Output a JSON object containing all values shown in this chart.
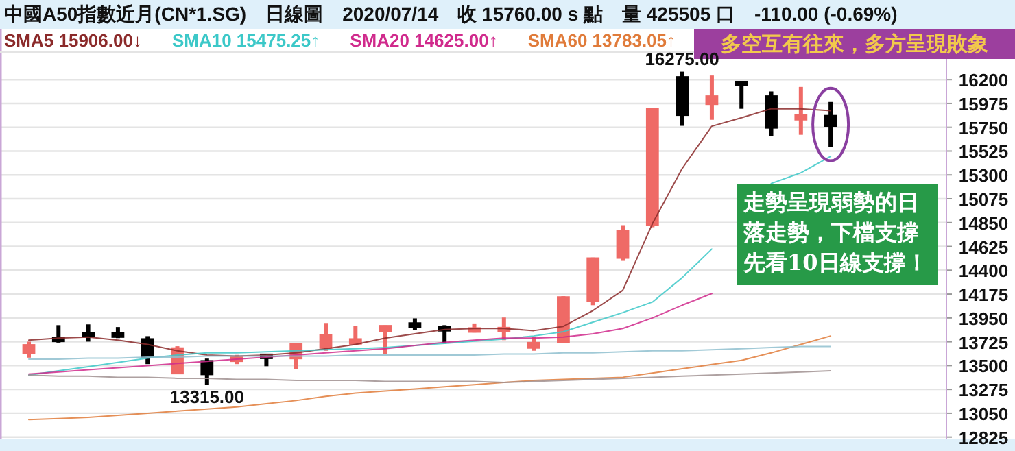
{
  "chart_data": {
    "type": "candlestick",
    "title": "中國A50指數近月(CN*1.SG)　日線圖　2020/07/14　收 15760.00 s 點　量 425505 口　-110.00 (-0.69%)",
    "categories": [
      null,
      null,
      null,
      null,
      null,
      null,
      null,
      null,
      null,
      null,
      null,
      null,
      null,
      null,
      null,
      null,
      null,
      null,
      null,
      null,
      null,
      null,
      null,
      null,
      null,
      null,
      null,
      null
    ],
    "ohlc": [
      [
        13618,
        13726,
        13575,
        13696
      ],
      [
        13750,
        13882,
        13717,
        13745
      ],
      [
        13795,
        13889,
        13726,
        13790
      ],
      [
        13812,
        13864,
        13760,
        13769
      ],
      [
        13752,
        13778,
        13514,
        13575
      ],
      [
        13424,
        13683,
        13424,
        13666
      ],
      [
        13545,
        13566,
        13315,
        13416
      ],
      [
        13545,
        13601,
        13514,
        13575
      ],
      [
        13590,
        13595,
        13494,
        13585
      ],
      [
        13566,
        13710,
        13468,
        13705
      ],
      [
        13666,
        13902,
        13640,
        13791
      ],
      [
        13705,
        13876,
        13696,
        13752
      ],
      [
        13821,
        13880,
        13610,
        13877
      ],
      [
        13885,
        13946,
        13834,
        13880
      ],
      [
        13850,
        13882,
        13708,
        13845
      ],
      [
        13825,
        13898,
        13812,
        13847
      ],
      [
        13830,
        13954,
        13740,
        13850
      ],
      [
        13666,
        13769,
        13640,
        13717
      ],
      [
        13717,
        14155,
        13710,
        14148
      ],
      [
        14105,
        14520,
        14070,
        14515
      ],
      [
        14515,
        14826,
        14489,
        14774
      ],
      [
        14826,
        15930,
        14807,
        15925
      ],
      [
        16226,
        16275,
        15764,
        15864
      ],
      [
        15967,
        16239,
        15821,
        16045
      ],
      [
        16165,
        16165,
        15925,
        16160
      ],
      [
        16045,
        16088,
        15666,
        15744
      ],
      [
        15821,
        16131,
        15679,
        15870
      ],
      [
        15860,
        15989,
        15563,
        15760
      ]
    ],
    "colors": [
      "#ef6a66",
      "#000000",
      "#000000",
      "#000000",
      "#000000",
      "#ef6a66",
      "#000000",
      "#ef6a66",
      "#000000",
      "#ef6a66",
      "#ef6a66",
      "#ef6a66",
      "#ef6a66",
      "#000000",
      "#000000",
      "#ef6a66",
      "#ef6a66",
      "#ef6a66",
      "#ef6a66",
      "#ef6a66",
      "#ef6a66",
      "#ef6a66",
      "#000000",
      "#ef6a66",
      "#000000",
      "#000000",
      "#ef6a66",
      "#000000"
    ],
    "series": [
      {
        "name": "SMA5 15906.00↓",
        "type": "line",
        "color": "#8b2a2a",
        "values": [
          13740,
          13760,
          13770,
          13740,
          13700,
          13640,
          13600,
          13590,
          13600,
          13620,
          13660,
          13700,
          13760,
          13800,
          13840,
          13850,
          13850,
          13830,
          13870,
          14020,
          14210,
          14840,
          15360,
          15760,
          15840,
          15925,
          15925,
          15906
        ]
      },
      {
        "name": "SMA10 15475.25↑",
        "type": "line",
        "color": "#3cc8c8",
        "values": [
          13410,
          13450,
          13490,
          13530,
          13570,
          13600,
          13620,
          13620,
          13630,
          13640,
          13650,
          13660,
          13670,
          13690,
          13710,
          13730,
          13750,
          13780,
          13820,
          13910,
          14000,
          14100,
          14330,
          14600,
          null,
          15220,
          15320,
          15475
        ]
      },
      {
        "name": "SMA20 14625.00↑",
        "type": "line",
        "color": "#d02a8c",
        "values": [
          13420,
          13440,
          13460,
          13480,
          13500,
          13520,
          13540,
          13560,
          13580,
          13600,
          13620,
          13640,
          13660,
          13690,
          13720,
          13740,
          13760,
          13760,
          13770,
          13800,
          13850,
          13950,
          14070,
          14180,
          null,
          null,
          null,
          null
        ]
      },
      {
        "name": "SMA60 13783.05↑",
        "type": "line",
        "color": "#e07b3a",
        "values": [
          12990,
          13000,
          13010,
          13030,
          13050,
          13070,
          13090,
          13110,
          13140,
          13170,
          13210,
          13240,
          13260,
          13280,
          13300,
          13320,
          13340,
          13360,
          13370,
          13380,
          13390,
          13430,
          13470,
          13510,
          13550,
          13620,
          13700,
          13780
        ]
      },
      {
        "type": "line",
        "color": "#8fbfcf",
        "values": [
          13560,
          13560,
          13570,
          13570,
          13580,
          13580,
          13590,
          13590,
          13590,
          13590,
          13590,
          13600,
          13600,
          13600,
          13600,
          13600,
          13610,
          13610,
          13620,
          13620,
          13630,
          13640,
          13640,
          13650,
          13660,
          13670,
          13680,
          13680
        ]
      },
      {
        "type": "line",
        "color": "#a09090",
        "values": [
          13410,
          13400,
          13400,
          13390,
          13390,
          13380,
          13380,
          13370,
          13370,
          13360,
          13360,
          13360,
          13350,
          13350,
          13350,
          13350,
          13340,
          13350,
          13360,
          13370,
          13380,
          13390,
          13400,
          13410,
          13420,
          13430,
          13440,
          13450
        ]
      }
    ],
    "ylim": [
      12810,
      16460
    ],
    "yticks": [
      12825,
      13050,
      13275,
      13500,
      13725,
      13950,
      14175,
      14400,
      14625,
      14850,
      15075,
      15300,
      15525,
      15750,
      15975,
      16200
    ],
    "grid": "y",
    "legend": "top left",
    "annotations": [
      "多空互有往來，多方呈現敗象",
      "走勢呈現弱勢的日落走勢，下檔支撐先看10日線支撐！",
      {
        "text": "16275.00",
        "y": 16275
      },
      {
        "text": "13315.00",
        "y": 13315
      }
    ]
  }
}
